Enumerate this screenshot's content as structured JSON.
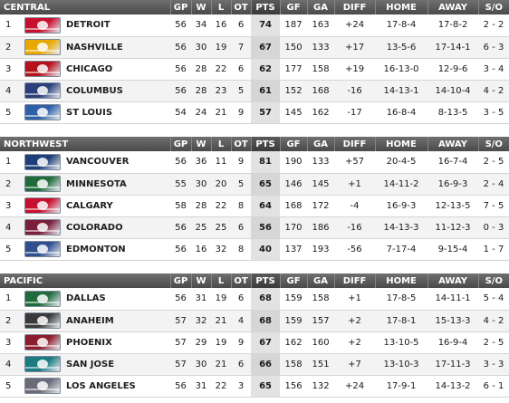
{
  "columns": {
    "gp": "GP",
    "w": "W",
    "l": "L",
    "ot": "OT",
    "pts": "PTS",
    "gf": "GF",
    "ga": "GA",
    "diff": "DIFF",
    "home": "HOME",
    "away": "AWAY",
    "so": "S/O"
  },
  "divisions": [
    {
      "name": "CENTRAL",
      "teams": [
        {
          "rank": "1",
          "team": "DETROIT",
          "logo_icon": "detroit-red-wings-logo-icon",
          "logo_color": "#c8102e",
          "gp": "56",
          "w": "34",
          "l": "16",
          "ot": "6",
          "pts": "74",
          "gf": "187",
          "ga": "163",
          "diff": "+24",
          "home": "17-8-4",
          "away": "17-8-2",
          "so": "2 - 2"
        },
        {
          "rank": "2",
          "team": "NASHVILLE",
          "logo_icon": "nashville-predators-logo-icon",
          "logo_color": "#e8a800",
          "gp": "56",
          "w": "30",
          "l": "19",
          "ot": "7",
          "pts": "67",
          "gf": "150",
          "ga": "133",
          "diff": "+17",
          "home": "13-5-6",
          "away": "17-14-1",
          "so": "6 - 3"
        },
        {
          "rank": "3",
          "team": "CHICAGO",
          "logo_icon": "chicago-blackhawks-logo-icon",
          "logo_color": "#b5121b",
          "gp": "56",
          "w": "28",
          "l": "22",
          "ot": "6",
          "pts": "62",
          "gf": "177",
          "ga": "158",
          "diff": "+19",
          "home": "16-13-0",
          "away": "12-9-6",
          "so": "3 - 4"
        },
        {
          "rank": "4",
          "team": "COLUMBUS",
          "logo_icon": "columbus-blue-jackets-logo-icon",
          "logo_color": "#2a3f7a",
          "gp": "56",
          "w": "28",
          "l": "23",
          "ot": "5",
          "pts": "61",
          "gf": "152",
          "ga": "168",
          "diff": "-16",
          "home": "14-13-1",
          "away": "14-10-4",
          "so": "4 - 2"
        },
        {
          "rank": "5",
          "team": "ST LOUIS",
          "logo_icon": "st-louis-blues-logo-icon",
          "logo_color": "#2f5fa8",
          "gp": "54",
          "w": "24",
          "l": "21",
          "ot": "9",
          "pts": "57",
          "gf": "145",
          "ga": "162",
          "diff": "-17",
          "home": "16-8-4",
          "away": "8-13-5",
          "so": "3 - 5"
        }
      ]
    },
    {
      "name": "NORTHWEST",
      "teams": [
        {
          "rank": "1",
          "team": "VANCOUVER",
          "logo_icon": "vancouver-canucks-logo-icon",
          "logo_color": "#1d3f78",
          "gp": "56",
          "w": "36",
          "l": "11",
          "ot": "9",
          "pts": "81",
          "gf": "190",
          "ga": "133",
          "diff": "+57",
          "home": "20-4-5",
          "away": "16-7-4",
          "so": "2 - 5"
        },
        {
          "rank": "2",
          "team": "MINNESOTA",
          "logo_icon": "minnesota-wild-logo-icon",
          "logo_color": "#1f6b3a",
          "gp": "55",
          "w": "30",
          "l": "20",
          "ot": "5",
          "pts": "65",
          "gf": "146",
          "ga": "145",
          "diff": "+1",
          "home": "14-11-2",
          "away": "16-9-3",
          "so": "2 - 4"
        },
        {
          "rank": "3",
          "team": "CALGARY",
          "logo_icon": "calgary-flames-logo-icon",
          "logo_color": "#c8102e",
          "gp": "58",
          "w": "28",
          "l": "22",
          "ot": "8",
          "pts": "64",
          "gf": "168",
          "ga": "172",
          "diff": "-4",
          "home": "16-9-3",
          "away": "12-13-5",
          "so": "7 - 5"
        },
        {
          "rank": "4",
          "team": "COLORADO",
          "logo_icon": "colorado-avalanche-logo-icon",
          "logo_color": "#7a1e3a",
          "gp": "56",
          "w": "25",
          "l": "25",
          "ot": "6",
          "pts": "56",
          "gf": "170",
          "ga": "186",
          "diff": "-16",
          "home": "14-13-3",
          "away": "11-12-3",
          "so": "0 - 3"
        },
        {
          "rank": "5",
          "team": "EDMONTON",
          "logo_icon": "edmonton-oilers-logo-icon",
          "logo_color": "#2f4f8f",
          "gp": "56",
          "w": "16",
          "l": "32",
          "ot": "8",
          "pts": "40",
          "gf": "137",
          "ga": "193",
          "diff": "-56",
          "home": "7-17-4",
          "away": "9-15-4",
          "so": "1 - 7"
        }
      ]
    },
    {
      "name": "PACIFIC",
      "teams": [
        {
          "rank": "1",
          "team": "DALLAS",
          "logo_icon": "dallas-stars-logo-icon",
          "logo_color": "#1e6b3c",
          "gp": "56",
          "w": "31",
          "l": "19",
          "ot": "6",
          "pts": "68",
          "gf": "159",
          "ga": "158",
          "diff": "+1",
          "home": "17-8-5",
          "away": "14-11-1",
          "so": "5 - 4"
        },
        {
          "rank": "2",
          "team": "ANAHEIM",
          "logo_icon": "anaheim-ducks-logo-icon",
          "logo_color": "#3a3a3a",
          "gp": "57",
          "w": "32",
          "l": "21",
          "ot": "4",
          "pts": "68",
          "gf": "159",
          "ga": "157",
          "diff": "+2",
          "home": "17-8-1",
          "away": "15-13-3",
          "so": "4 - 2"
        },
        {
          "rank": "3",
          "team": "PHOENIX",
          "logo_icon": "phoenix-coyotes-logo-icon",
          "logo_color": "#8c1d2c",
          "gp": "57",
          "w": "29",
          "l": "19",
          "ot": "9",
          "pts": "67",
          "gf": "162",
          "ga": "160",
          "diff": "+2",
          "home": "13-10-5",
          "away": "16-9-4",
          "so": "2 - 5"
        },
        {
          "rank": "4",
          "team": "SAN JOSE",
          "logo_icon": "san-jose-sharks-logo-icon",
          "logo_color": "#1b7a82",
          "gp": "57",
          "w": "30",
          "l": "21",
          "ot": "6",
          "pts": "66",
          "gf": "158",
          "ga": "151",
          "diff": "+7",
          "home": "13-10-3",
          "away": "17-11-3",
          "so": "3 - 3"
        },
        {
          "rank": "5",
          "team": "LOS ANGELES",
          "logo_icon": "los-angeles-kings-logo-icon",
          "logo_color": "#6a6a78",
          "gp": "56",
          "w": "31",
          "l": "22",
          "ot": "3",
          "pts": "65",
          "gf": "156",
          "ga": "132",
          "diff": "+24",
          "home": "17-9-1",
          "away": "14-13-2",
          "so": "6 - 1"
        }
      ]
    }
  ]
}
